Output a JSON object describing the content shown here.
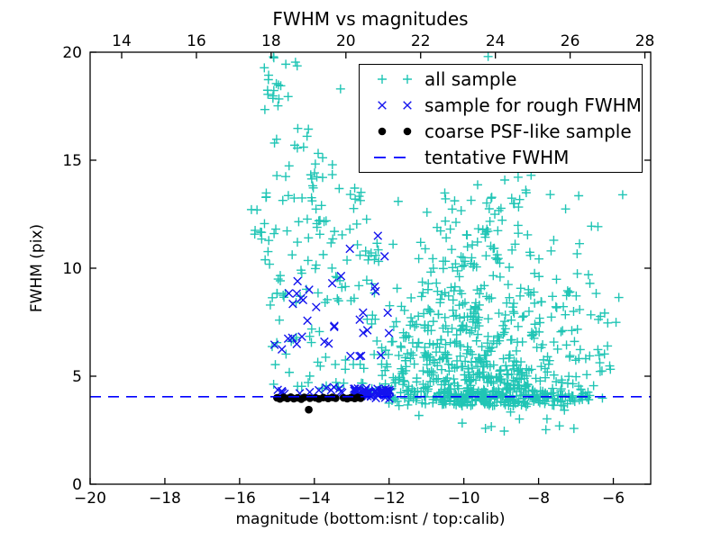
{
  "title": "FWHM vs magnitudes",
  "axis_labels": {
    "x": "magnitude (bottom:isnt / top:calib)",
    "y": "FWHM (pix)"
  },
  "legend": {
    "position": "upper right",
    "items": [
      {
        "label": "all sample",
        "marker": "plus",
        "color": "#20c5b5"
      },
      {
        "label": "sample for rough FWHM",
        "marker": "x",
        "color": "#1414ee"
      },
      {
        "label": "coarse PSF-like sample",
        "marker": "dot",
        "color": "#000000"
      },
      {
        "label": "tentative FWHM",
        "marker": "dashed-line",
        "color": "#0000ff"
      }
    ]
  },
  "chart_data": {
    "type": "scatter",
    "title": "FWHM vs magnitudes",
    "xlabel": "magnitude (bottom:isnt / top:calib)",
    "ylabel": "FWHM (pix)",
    "xlim": [
      -20,
      -5
    ],
    "ylim": [
      0,
      20
    ],
    "x2lim": [
      13.156,
      28.156
    ],
    "xticks": [
      -20,
      -18,
      -16,
      -14,
      -12,
      -10,
      -8,
      -6
    ],
    "x2ticks": [
      14,
      16,
      18,
      20,
      22,
      24,
      26,
      28
    ],
    "yticks": [
      0,
      5,
      10,
      15,
      20
    ],
    "grid": false,
    "seed": 20240813,
    "hline": {
      "name": "tentative FWHM",
      "y": 4.05,
      "color": "#0000ff",
      "dash": [
        12,
        8
      ],
      "width": 1.6
    },
    "series": [
      {
        "name": "all sample",
        "marker": "plus",
        "color": "#20c5b5",
        "clusters": [
          {
            "n": 20,
            "x": {
              "u": [
                -15.35,
                -14.3
              ]
            },
            "y": {
              "u": [
                17.2,
                19.8
              ]
            }
          },
          {
            "n": 16,
            "x": {
              "u": [
                -15.7,
                -15.0
              ]
            },
            "y": {
              "u": [
                10.2,
                13.8
              ]
            }
          },
          {
            "n": 10,
            "x": {
              "u": [
                -15.25,
                -14.8
              ]
            },
            "y": {
              "u": [
                4.8,
                10.2
              ]
            }
          },
          {
            "n": 8,
            "x": {
              "u": [
                -15.1,
                -14.4
              ]
            },
            "y": {
              "u": [
                14.2,
                17.0
              ]
            }
          },
          {
            "n": 14,
            "x": {
              "u": [
                -14.35,
                -13.5
              ]
            },
            "y": {
              "u": [
                13.5,
                16.6
              ]
            }
          },
          {
            "n": 55,
            "x": {
              "u": [
                -14.85,
                -12.2
              ]
            },
            "y": {
              "u": [
                9.8,
                13.8
              ]
            }
          },
          {
            "n": 50,
            "x": {
              "u": [
                -15.0,
                -12.2
              ]
            },
            "y": {
              "u": [
                4.9,
                9.8
              ]
            }
          },
          {
            "n": 30,
            "x": {
              "u": [
                -12.2,
                -11.5
              ]
            },
            "y": {
              "u": [
                4.2,
                6.8
              ]
            }
          },
          {
            "n": 520,
            "x": {
              "nrm": [
                -9.3,
                1.3
              ],
              "clip": [
                -11.9,
                -6.2
              ]
            },
            "y": {
              "exp": [
                3.6,
                2.3
              ],
              "clip": [
                3.4,
                13.6
              ]
            }
          },
          {
            "n": 80,
            "x": {
              "nrm": [
                -10.9,
                0.65
              ],
              "clip": [
                -12.0,
                -9.7
              ]
            },
            "y": {
              "u": [
                4.0,
                9.5
              ]
            }
          },
          {
            "n": 60,
            "x": {
              "nrm": [
                -9.6,
                1.0
              ],
              "clip": [
                -11.6,
                -7.4
              ]
            },
            "y": {
              "u": [
                9.5,
                13.5
              ]
            }
          },
          {
            "n": 16,
            "x": {
              "u": [
                -10.6,
                -7.9
              ]
            },
            "y": {
              "u": [
                13.6,
                16.4
              ]
            }
          },
          {
            "n": 25,
            "x": {
              "u": [
                -7.4,
                -5.8
              ]
            },
            "y": {
              "u": [
                3.5,
                9.0
              ]
            }
          },
          {
            "n": 10,
            "x": {
              "u": [
                -7.7,
                -6.2
              ]
            },
            "y": {
              "u": [
                9.0,
                13.4
              ]
            }
          },
          {
            "n": 12,
            "x": {
              "u": [
                -11.5,
                -7.0
              ]
            },
            "y": {
              "u": [
                2.3,
                3.5
              ]
            }
          },
          {
            "n": 120,
            "x": {
              "u": [
                -12.05,
                -6.6
              ]
            },
            "y": {
              "nrm": [
                4.08,
                0.15
              ],
              "clip": [
                3.75,
                4.5
              ]
            }
          },
          {
            "n": 15,
            "x": {
              "u": [
                -15.1,
                -12.1
              ]
            },
            "y": {
              "u": [
                4.3,
                4.75
              ]
            }
          }
        ],
        "points": [
          [
            -13.3,
            18.3
          ],
          [
            -12.45,
            17.4
          ],
          [
            -12.4,
            16.6
          ],
          [
            -10.35,
            15.9
          ],
          [
            -10.3,
            14.8
          ],
          [
            -9.35,
            19.8
          ],
          [
            -9.45,
            18.9
          ],
          [
            -9.4,
            17.9
          ],
          [
            -9.35,
            17.0
          ],
          [
            -9.3,
            16.3
          ],
          [
            -8.5,
            15.4
          ],
          [
            -8.2,
            14.3
          ],
          [
            -5.75,
            13.4
          ]
        ]
      },
      {
        "name": "sample for rough FWHM",
        "marker": "x",
        "color": "#1414ee",
        "clusters": [
          {
            "n": 26,
            "x": {
              "u": [
                -14.7,
                -12.0
              ]
            },
            "y": {
              "u": [
                5.8,
                9.9
              ]
            }
          },
          {
            "n": 6,
            "x": {
              "u": [
                -15.1,
                -14.2
              ]
            },
            "y": {
              "u": [
                6.2,
                9.5
              ]
            }
          },
          {
            "n": 70,
            "x": {
              "u": [
                -12.95,
                -11.95
              ]
            },
            "y": {
              "nrm": [
                4.2,
                0.12
              ],
              "clip": [
                3.9,
                4.5
              ]
            }
          },
          {
            "n": 14,
            "x": {
              "u": [
                -15.05,
                -12.95
              ]
            },
            "y": {
              "nrm": [
                4.32,
                0.14
              ],
              "clip": [
                4.0,
                4.65
              ]
            }
          }
        ],
        "points": [
          [
            -12.3,
            11.5
          ],
          [
            -12.12,
            10.55
          ],
          [
            -13.05,
            10.9
          ],
          [
            -14.45,
            9.4
          ]
        ]
      },
      {
        "name": "coarse PSF-like sample",
        "marker": "dot",
        "color": "#000000",
        "clusters": [],
        "points": [
          [
            -15.0,
            4.0
          ],
          [
            -14.92,
            3.95
          ],
          [
            -14.82,
            4.02
          ],
          [
            -14.72,
            3.97
          ],
          [
            -14.63,
            4.03
          ],
          [
            -14.55,
            3.96
          ],
          [
            -14.45,
            4.0
          ],
          [
            -14.35,
            3.94
          ],
          [
            -14.27,
            4.02
          ],
          [
            -14.12,
            3.98
          ],
          [
            -13.97,
            4.0
          ],
          [
            -13.88,
            3.95
          ],
          [
            -13.76,
            4.01
          ],
          [
            -13.63,
            3.97
          ],
          [
            -13.52,
            4.02
          ],
          [
            -13.43,
            3.98
          ],
          [
            -13.22,
            4.0
          ],
          [
            -13.12,
            3.96
          ],
          [
            -13.02,
            4.01
          ],
          [
            -12.92,
            3.97
          ],
          [
            -12.84,
            4.02
          ],
          [
            -12.76,
            3.98
          ],
          [
            -14.15,
            3.45
          ]
        ]
      }
    ]
  }
}
